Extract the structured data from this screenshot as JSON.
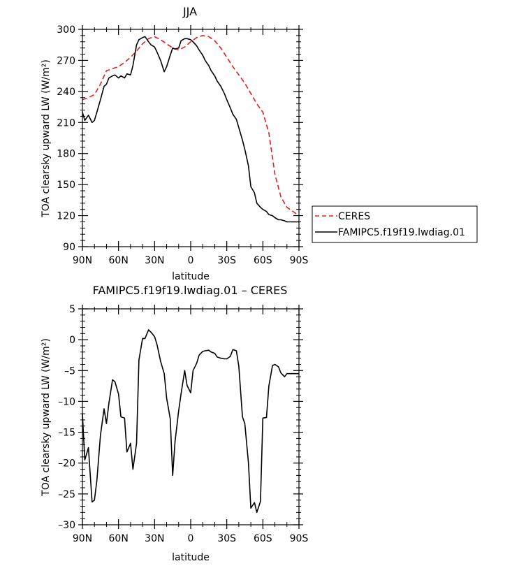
{
  "chart_data": [
    {
      "type": "line",
      "title": "JJA",
      "xlabel": "latitude",
      "ylabel": "TOA clearsky upward LW (W/m²)",
      "xlim": [
        90,
        -90
      ],
      "ylim": [
        90,
        300
      ],
      "x_ticks": [
        90,
        60,
        30,
        0,
        -30,
        -60,
        -90
      ],
      "x_tick_labels": [
        "90N",
        "60N",
        "30N",
        "0",
        "30S",
        "60S",
        "90S"
      ],
      "y_ticks": [
        90,
        120,
        150,
        180,
        210,
        240,
        270,
        300
      ],
      "y_tick_labels": [
        "90",
        "120",
        "150",
        "180",
        "210",
        "240",
        "270",
        "300"
      ],
      "legend_position": "right",
      "legend_entries": [
        "CERES",
        "FAMIPC5.f19f19.lwdiag.01"
      ],
      "series": [
        {
          "name": "CERES",
          "color": "#e02020",
          "dash": "dashed",
          "x": [
            90,
            85,
            80,
            75,
            70,
            65,
            60,
            55,
            50,
            45,
            40,
            35,
            30,
            25,
            20,
            15,
            10,
            5,
            0,
            -5,
            -10,
            -15,
            -20,
            -25,
            -30,
            -35,
            -40,
            -45,
            -50,
            -55,
            -60,
            -65,
            -70,
            -75,
            -80,
            -85,
            -90
          ],
          "y": [
            232,
            234,
            237,
            247,
            260,
            262,
            264,
            268,
            273,
            279,
            286,
            291,
            293,
            290,
            286,
            282,
            280,
            283,
            288,
            292,
            294,
            293,
            289,
            282,
            273,
            264,
            256,
            248,
            238,
            228,
            220,
            200,
            160,
            138,
            128,
            124,
            120
          ]
        },
        {
          "name": "FAMIPC5.f19f19.lwdiag.01",
          "color": "#000000",
          "dash": "solid",
          "x": [
            90,
            88,
            85,
            82,
            80,
            78,
            75,
            72,
            70,
            68,
            65,
            63,
            60,
            58,
            55,
            53,
            50,
            48,
            45,
            43,
            40,
            38,
            35,
            33,
            30,
            28,
            25,
            22,
            20,
            17,
            15,
            13,
            10,
            8,
            5,
            3,
            0,
            -2,
            -5,
            -7,
            -10,
            -12,
            -15,
            -17,
            -20,
            -22,
            -25,
            -28,
            -30,
            -33,
            -35,
            -38,
            -40,
            -43,
            -45,
            -48,
            -50,
            -53,
            -55,
            -58,
            -60,
            -63,
            -65,
            -68,
            -70,
            -73,
            -75,
            -78,
            -80,
            -83,
            -85,
            -88,
            -90
          ],
          "y": [
            220,
            212,
            217,
            210,
            212,
            220,
            232,
            245,
            247,
            253,
            255,
            256,
            253,
            255,
            253,
            257,
            256,
            265,
            285,
            290,
            292,
            293,
            288,
            285,
            283,
            278,
            270,
            259,
            264,
            275,
            282,
            281,
            282,
            289,
            291,
            291,
            290,
            288,
            284,
            280,
            275,
            270,
            265,
            260,
            255,
            250,
            245,
            238,
            232,
            224,
            218,
            213,
            205,
            193,
            184,
            168,
            148,
            142,
            132,
            128,
            126,
            124,
            121,
            120,
            118,
            116,
            116,
            115,
            114,
            114,
            114,
            114,
            114
          ]
        }
      ]
    },
    {
      "type": "line",
      "title": "FAMIPC5.f19f19.lwdiag.01 – CERES",
      "xlabel": "latitude",
      "ylabel": "TOA clearsky upward LW (W/m²)",
      "xlim": [
        90,
        -90
      ],
      "ylim": [
        -30,
        5
      ],
      "x_ticks": [
        90,
        60,
        30,
        0,
        -30,
        -60,
        -90
      ],
      "x_tick_labels": [
        "90N",
        "60N",
        "30N",
        "0",
        "30S",
        "60S",
        "90S"
      ],
      "y_ticks": [
        -30,
        -25,
        -20,
        -15,
        -10,
        -5,
        0,
        5
      ],
      "y_tick_labels": [
        "–30",
        "–25",
        "–20",
        "–15",
        "–10",
        "–5",
        "0",
        "5"
      ],
      "series": [
        {
          "color": "#000000",
          "dash": "solid",
          "x": [
            90,
            88,
            85,
            82,
            80,
            78,
            75,
            72,
            70,
            68,
            65,
            63,
            60,
            58,
            55,
            53,
            50,
            48,
            45,
            43,
            40,
            38,
            35,
            33,
            30,
            28,
            25,
            22,
            20,
            17,
            15,
            13,
            10,
            8,
            5,
            3,
            0,
            -2,
            -5,
            -7,
            -10,
            -12,
            -15,
            -17,
            -20,
            -22,
            -25,
            -28,
            -30,
            -33,
            -35,
            -38,
            -40,
            -43,
            -45,
            -48,
            -50,
            -53,
            -55,
            -58,
            -60,
            -63,
            -65,
            -68,
            -70,
            -73,
            -75,
            -78,
            -80,
            -83,
            -85,
            -88,
            -90
          ],
          "y": [
            -12,
            -19.5,
            -17.5,
            -26.3,
            -26,
            -22.8,
            -15.5,
            -11.2,
            -13.6,
            -10.3,
            -6.5,
            -6.8,
            -8.8,
            -12.5,
            -12.7,
            -18.2,
            -16.8,
            -21,
            -16.8,
            -3.3,
            0.2,
            0.2,
            1.6,
            1.2,
            0.5,
            -0.8,
            -3.5,
            -5.5,
            -9.5,
            -12.8,
            -22,
            -16.5,
            -11.5,
            -8.8,
            -5,
            -7.4,
            -8.6,
            -5,
            -3.8,
            -2.5,
            -1.9,
            -1.8,
            -1.7,
            -2,
            -2.2,
            -2.8,
            -3,
            -3.1,
            -3.1,
            -2.7,
            -1.6,
            -1.8,
            -4.3,
            -12.5,
            -13.6,
            -20,
            -27.3,
            -26.4,
            -28,
            -26.2,
            -12.7,
            -12.6,
            -7.5,
            -4.2,
            -4,
            -4.4,
            -5.4,
            -6,
            -5.5,
            -5.5,
            -5.5,
            -5.5,
            -5.5
          ]
        }
      ]
    }
  ]
}
